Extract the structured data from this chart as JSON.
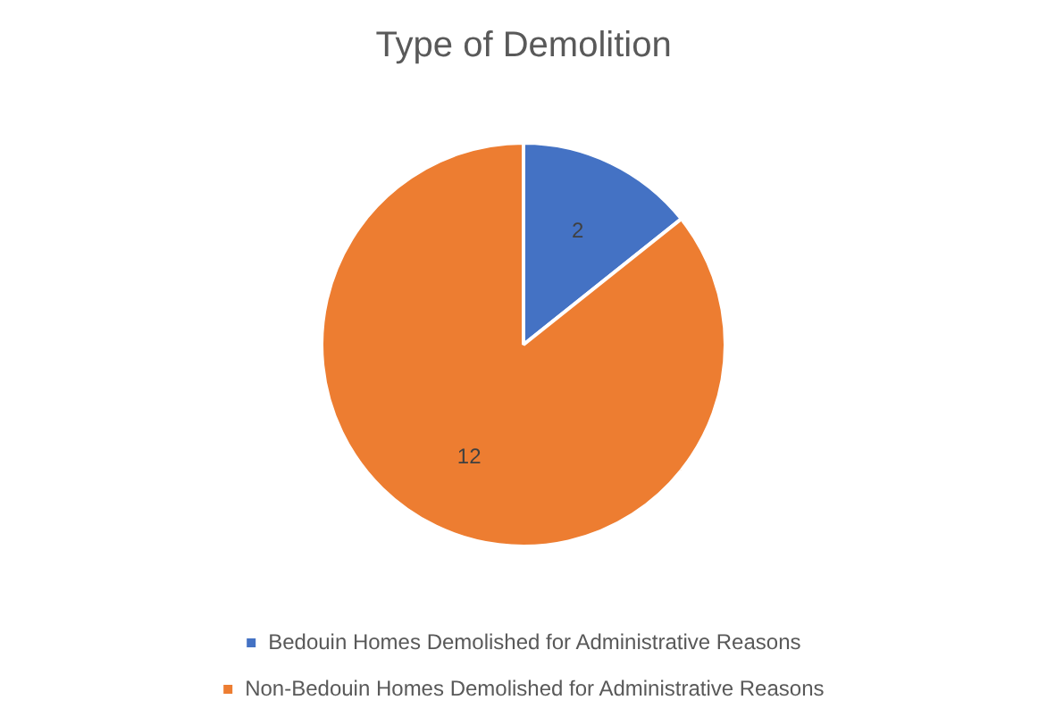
{
  "chart_data": {
    "type": "pie",
    "title": "Type of Demolition",
    "categories": [
      "Bedouin Homes Demolished for Administrative Reasons",
      "Non-Bedouin Homes Demolished for Administrative Reasons"
    ],
    "values": [
      2,
      12
    ],
    "colors": [
      "#4472c4",
      "#ed7d31"
    ],
    "data_labels": true,
    "legend": "bottom"
  }
}
